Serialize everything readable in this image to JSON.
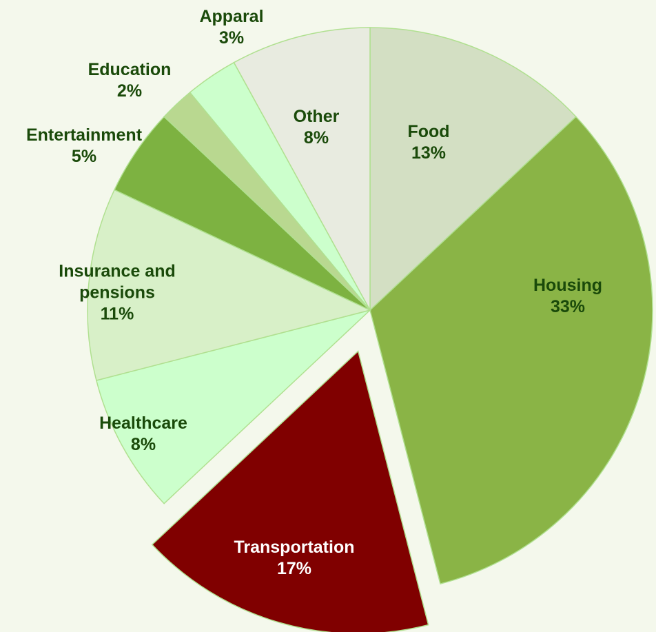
{
  "chart_data": {
    "type": "pie",
    "categories": [
      "Food",
      "Housing",
      "Transportation",
      "Healthcare",
      "Insurance and pensions",
      "Entertainment",
      "Education",
      "Apparal",
      "Other"
    ],
    "values": [
      13,
      33,
      17,
      8,
      11,
      5,
      2,
      3,
      8
    ],
    "value_labels": [
      "13%",
      "33%",
      "17%",
      "8%",
      "11%",
      "5%",
      "2%",
      "3%",
      "8%"
    ],
    "colors": [
      "#d3dfc3",
      "#8ab446",
      "#800000",
      "#ccffcc",
      "#d8f0c8",
      "#7db241",
      "#b9d890",
      "#ccffcc",
      "#e8ebe0"
    ],
    "exploded": [
      "Transportation"
    ]
  }
}
